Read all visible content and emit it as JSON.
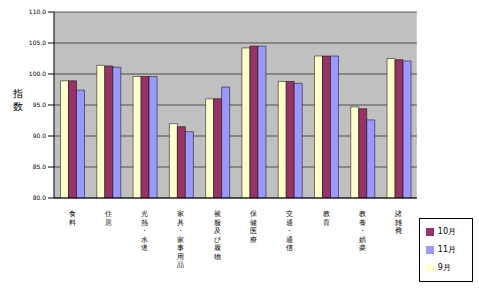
{
  "chart_data": {
    "type": "bar",
    "y_label": "指数",
    "categories": [
      "食料",
      "住居",
      "光熱・水道",
      "家具・家事用品",
      "被服及び履物",
      "保健医療",
      "交通・通信",
      "教育",
      "教養・娯楽",
      "諸雑費"
    ],
    "series": [
      {
        "name": "9月",
        "color": "#FFFFCC",
        "values": [
          98.9,
          101.4,
          99.6,
          92.0,
          96.0,
          104.2,
          98.8,
          102.9,
          94.7,
          102.5
        ]
      },
      {
        "name": "10月",
        "color": "#993366",
        "values": [
          98.9,
          101.3,
          99.6,
          91.5,
          96.0,
          104.5,
          98.8,
          102.9,
          94.4,
          102.3
        ]
      },
      {
        "name": "11月",
        "color": "#9999FF",
        "values": [
          97.4,
          101.1,
          99.6,
          90.7,
          97.9,
          104.5,
          98.5,
          102.9,
          92.6,
          102.1
        ]
      }
    ],
    "ylim": [
      80,
      110
    ],
    "yticks": [
      {
        "value": 80,
        "label": "80.0"
      },
      {
        "value": 85,
        "label": "85.0"
      },
      {
        "value": 90,
        "label": "90.0"
      },
      {
        "value": 95,
        "label": "95.0"
      },
      {
        "value": 100,
        "label": "100.0"
      },
      {
        "value": 105,
        "label": "105.0"
      },
      {
        "value": 110,
        "label": "110.0"
      }
    ],
    "grid": true,
    "legend": "right"
  }
}
